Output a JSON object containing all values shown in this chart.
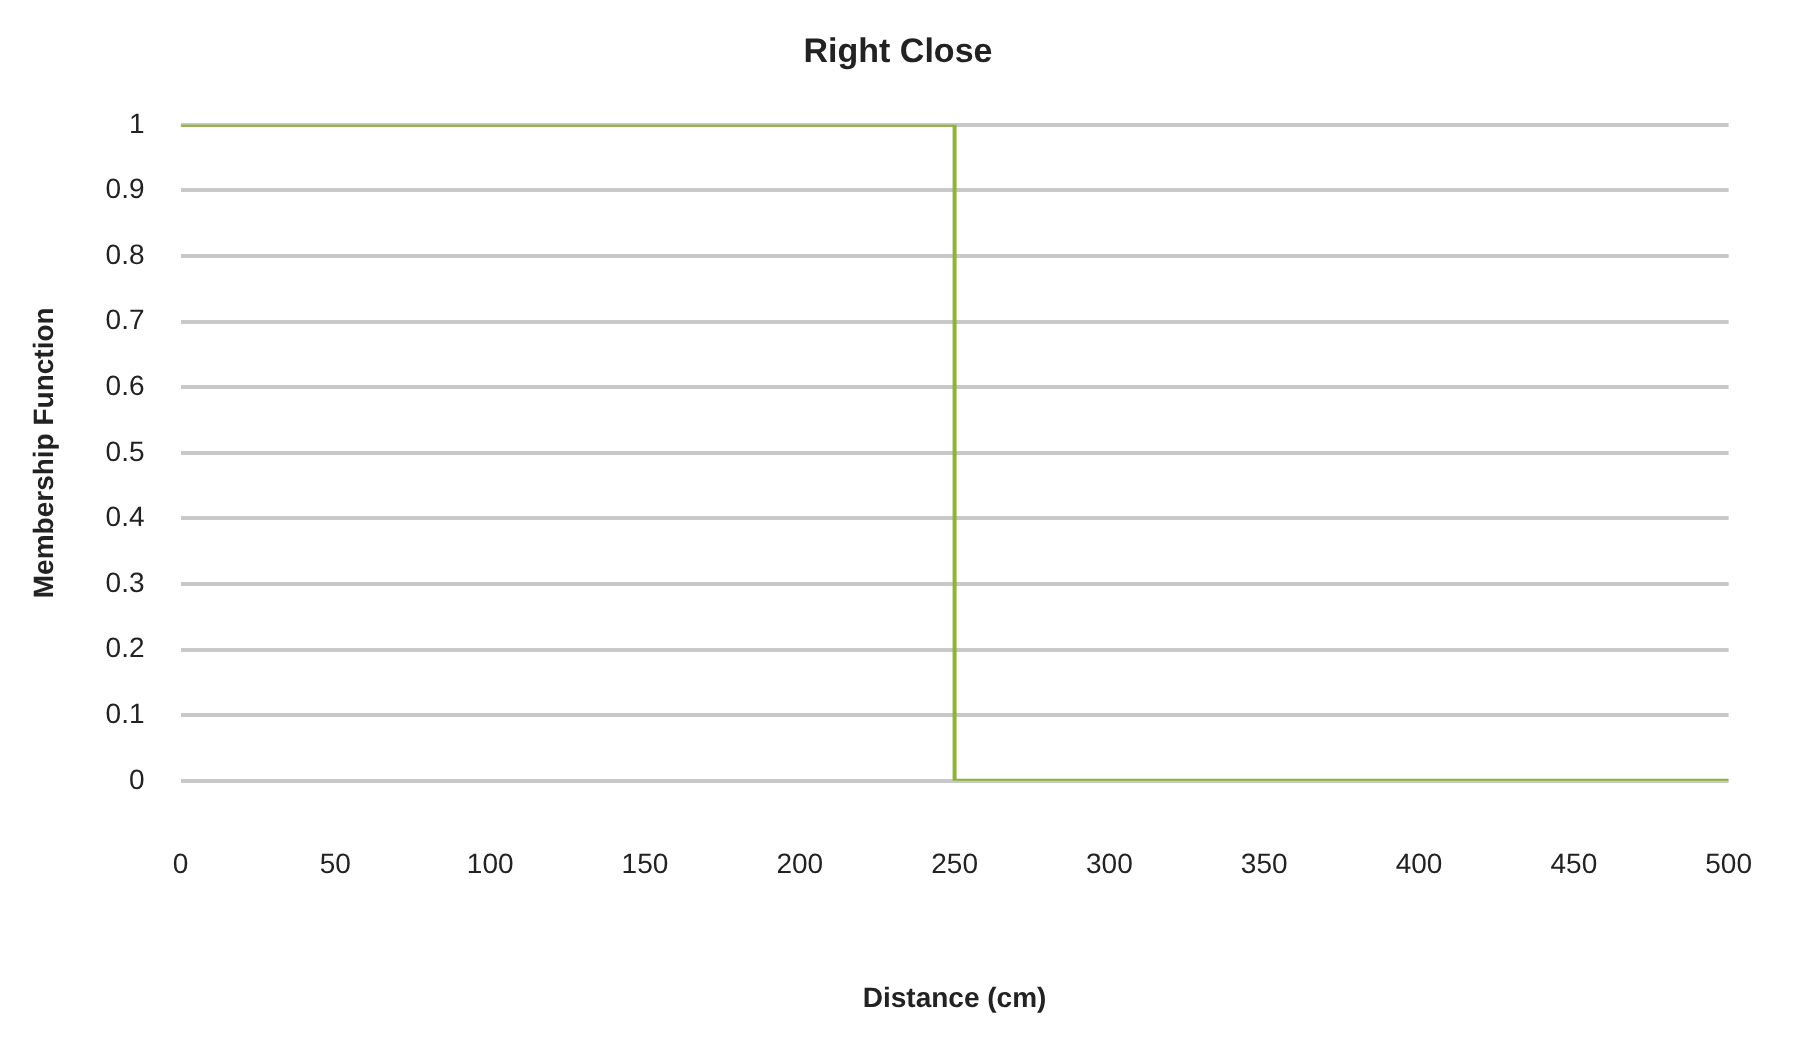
{
  "chart_data": {
    "type": "line",
    "title": "Right Close",
    "xlabel": "Distance (cm)",
    "ylabel": "Membership Function",
    "x": [
      0,
      250,
      250,
      500
    ],
    "series": [
      {
        "color": "#8db33a",
        "values": [
          1,
          1,
          0,
          0
        ]
      }
    ],
    "xlim": [
      0,
      500
    ],
    "xticks": [
      0,
      50,
      100,
      150,
      200,
      250,
      300,
      350,
      400,
      450,
      500
    ],
    "ylim": [
      0,
      1
    ],
    "yticks": [
      0,
      0.1,
      0.2,
      0.3,
      0.4,
      0.5,
      0.6,
      0.7,
      0.8,
      0.9,
      1
    ],
    "grid": "y",
    "legend": false,
    "marker": "none",
    "line_style": "solid"
  }
}
